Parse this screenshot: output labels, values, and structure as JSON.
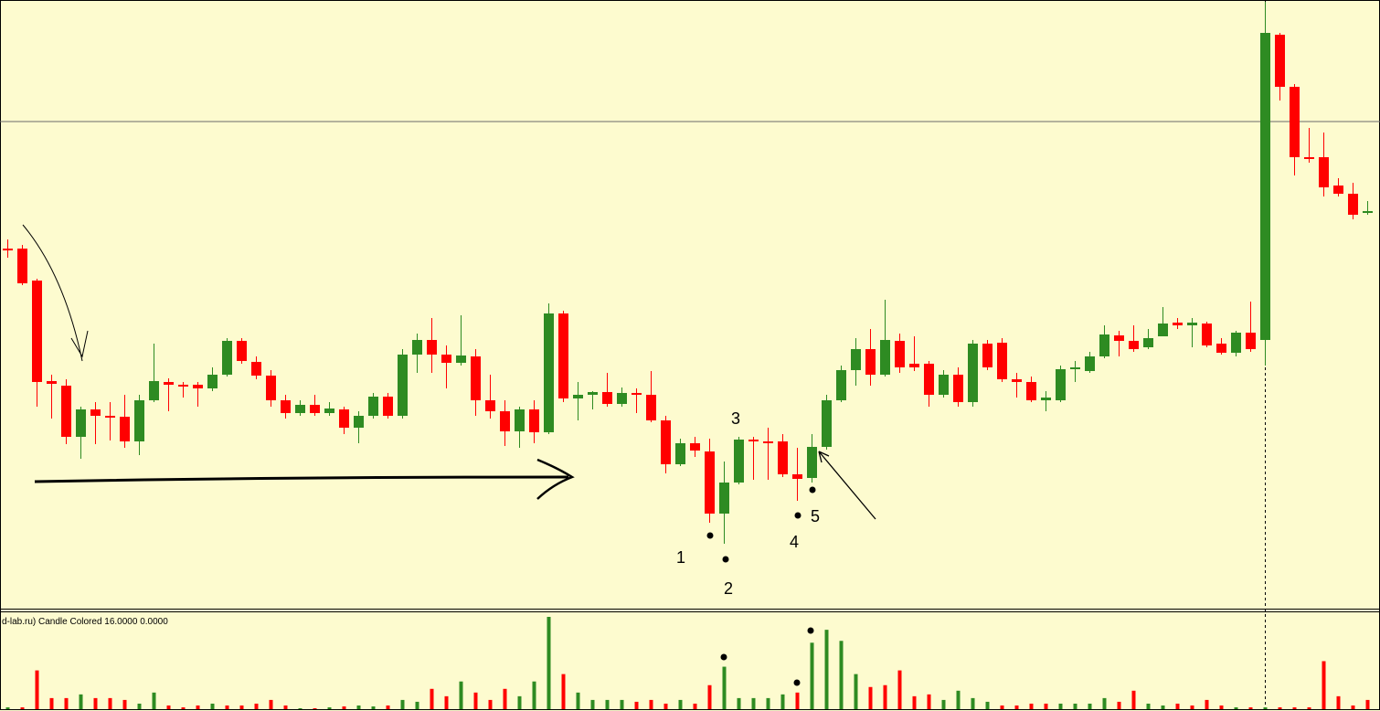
{
  "chart_data": {
    "type": "candlestick",
    "indicator_label": "d-lab.ru) Candle Colored 16.0000 0.0000",
    "annotations": [
      "1",
      "2",
      "3",
      "4",
      "5"
    ],
    "up_color": "#2e8b22",
    "down_color": "#ff0000",
    "ylim": [
      0,
      665
    ],
    "hline": 532,
    "open": [
      393,
      393,
      358,
      248,
      243,
      187,
      217,
      210,
      209,
      182,
      227,
      247,
      244,
      244,
      240,
      255,
      292,
      269,
      254,
      227,
      213,
      222,
      213,
      217,
      197,
      210,
      231,
      210,
      277,
      293,
      277,
      268,
      275,
      227,
      215,
      193,
      217,
      192,
      322,
      229,
      233,
      236,
      223,
      235,
      233,
      205,
      157,
      180,
      171,
      103,
      137,
      184,
      182,
      182,
      146,
      142,
      176,
      227,
      260,
      283,
      255,
      292,
      267,
      267,
      233,
      255,
      225,
      289,
      290,
      250,
      247,
      227,
      227,
      261,
      259,
      275,
      298,
      292,
      285,
      297,
      312,
      309,
      311,
      289,
      279,
      301,
      293,
      627,
      570,
      493,
      493,
      462,
      453,
      432
    ],
    "high": [
      403,
      397,
      360,
      255,
      250,
      220,
      225,
      225,
      233,
      233,
      289,
      251,
      247,
      247,
      263,
      295,
      295,
      275,
      260,
      233,
      227,
      233,
      225,
      220,
      215,
      235,
      235,
      283,
      300,
      317,
      287,
      320,
      283,
      255,
      227,
      220,
      227,
      333,
      325,
      247,
      237,
      257,
      241,
      240,
      259,
      210,
      185,
      187,
      185,
      160,
      187,
      187,
      197,
      190,
      175,
      190,
      233,
      265,
      295,
      305,
      337,
      300,
      297,
      270,
      260,
      263,
      293,
      293,
      295,
      257,
      253,
      237,
      265,
      270,
      280,
      309,
      303,
      309,
      305,
      329,
      317,
      317,
      313,
      295,
      303,
      335,
      663,
      629,
      573,
      525,
      520,
      470,
      465,
      445
    ],
    "low": [
      383,
      353,
      220,
      207,
      179,
      163,
      179,
      183,
      175,
      167,
      225,
      215,
      230,
      220,
      237,
      253,
      267,
      250,
      220,
      207,
      210,
      210,
      210,
      190,
      180,
      207,
      207,
      207,
      257,
      257,
      240,
      265,
      210,
      207,
      177,
      175,
      180,
      190,
      225,
      205,
      217,
      220,
      220,
      213,
      203,
      147,
      155,
      165,
      93,
      70,
      135,
      140,
      140,
      143,
      117,
      137,
      173,
      225,
      243,
      243,
      253,
      257,
      259,
      220,
      230,
      220,
      220,
      260,
      247,
      230,
      225,
      215,
      225,
      247,
      257,
      273,
      275,
      280,
      283,
      297,
      305,
      285,
      285,
      277,
      275,
      280,
      265,
      555,
      473,
      487,
      450,
      450,
      425,
      430
    ],
    "close": [
      391,
      355,
      247,
      245,
      187,
      217,
      210,
      209,
      182,
      227,
      248,
      244,
      243,
      240,
      255,
      292,
      270,
      254,
      227,
      213,
      222,
      213,
      218,
      197,
      210,
      231,
      210,
      277,
      293,
      277,
      268,
      276,
      227,
      215,
      193,
      217,
      192,
      322,
      229,
      233,
      236,
      223,
      235,
      233,
      205,
      157,
      180,
      172,
      103,
      137,
      184,
      182,
      181,
      146,
      141,
      176,
      227,
      260,
      283,
      255,
      293,
      263,
      263,
      233,
      255,
      225,
      289,
      263,
      250,
      247,
      227,
      230,
      261,
      263,
      275,
      299,
      292,
      283,
      295,
      311,
      309,
      312,
      287,
      279,
      301,
      283,
      629,
      570,
      493,
      491,
      460,
      453,
      430,
      434
    ],
    "volume": [
      2,
      2,
      42,
      12,
      12,
      16,
      12,
      12,
      10,
      6,
      18,
      4,
      2,
      4,
      6,
      4,
      4,
      6,
      10,
      4,
      1,
      1,
      2,
      3,
      4,
      3,
      4,
      10,
      8,
      22,
      14,
      30,
      18,
      10,
      22,
      14,
      30,
      100,
      38,
      18,
      10,
      10,
      10,
      8,
      10,
      6,
      10,
      6,
      26,
      46,
      12,
      12,
      12,
      16,
      18,
      72,
      86,
      74,
      38,
      24,
      26,
      42,
      14,
      16,
      10,
      20,
      12,
      8,
      4,
      4,
      6,
      6,
      6,
      6,
      6,
      12,
      8,
      20,
      6,
      4,
      6,
      4,
      10,
      4,
      2,
      2,
      2,
      2,
      2,
      2,
      52,
      14,
      4,
      10
    ],
    "volume_up": [
      true,
      false,
      false,
      false,
      false,
      true,
      false,
      false,
      false,
      true,
      true,
      false,
      false,
      false,
      true,
      false,
      false,
      false,
      false,
      false,
      true,
      false,
      true,
      false,
      true,
      true,
      false,
      true,
      true,
      false,
      false,
      true,
      false,
      false,
      false,
      true,
      true,
      true,
      false,
      true,
      true,
      true,
      true,
      false,
      false,
      false,
      true,
      false,
      false,
      true,
      true,
      true,
      true,
      true,
      false,
      true,
      true,
      true,
      true,
      false,
      false,
      false,
      false,
      false,
      true,
      true,
      true,
      true,
      false,
      false,
      false,
      false,
      true,
      true,
      true,
      true,
      false,
      false,
      true,
      true,
      false,
      false,
      false,
      false,
      true,
      false,
      true,
      false,
      false,
      false,
      false,
      false,
      false,
      false
    ],
    "volume_ylim": [
      0,
      100
    ]
  }
}
